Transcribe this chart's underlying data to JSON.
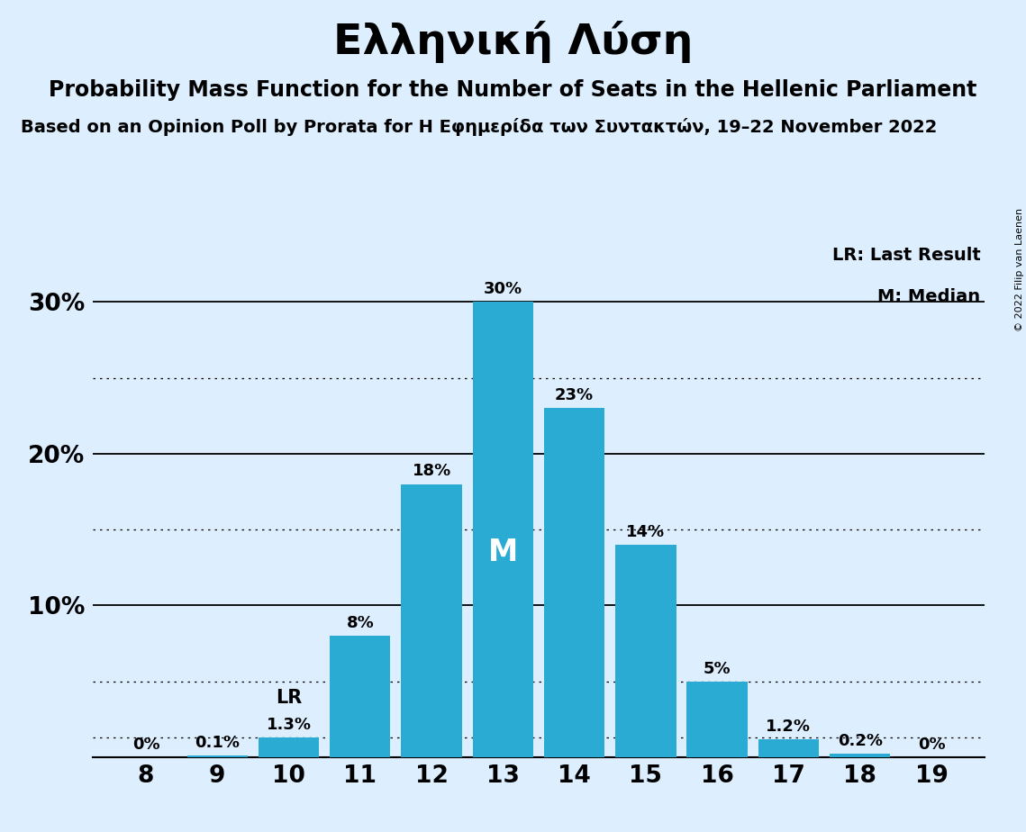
{
  "title": "Ελληνική Λύση",
  "subtitle": "Probability Mass Function for the Number of Seats in the Hellenic Parliament",
  "source_line": "Based on an Opinion Poll by Prorata for Η Εφημερίδα των Συντακτών, 19–22 November 2022",
  "copyright": "© 2022 Filip van Laenen",
  "seats": [
    8,
    9,
    10,
    11,
    12,
    13,
    14,
    15,
    16,
    17,
    18,
    19
  ],
  "probabilities": [
    0.0,
    0.1,
    1.3,
    8.0,
    18.0,
    30.0,
    23.0,
    14.0,
    5.0,
    1.2,
    0.2,
    0.0
  ],
  "bar_color": "#29ABD4",
  "background_color": "#ddeeff",
  "median_seat": 13,
  "lr_seat": 10,
  "lr_value": 1.3,
  "yticks": [
    10,
    20,
    30
  ],
  "ylim": [
    0,
    34
  ],
  "legend_lr": "LR: Last Result",
  "legend_m": "M: Median",
  "dotted_yticks": [
    5,
    15,
    25
  ],
  "title_fontsize": 34,
  "subtitle_fontsize": 17,
  "source_fontsize": 14
}
